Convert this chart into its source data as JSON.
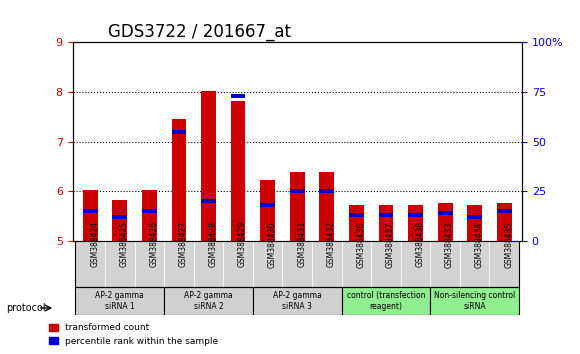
{
  "title": "GDS3722 / 201667_at",
  "samples": [
    "GSM388424",
    "GSM388425",
    "GSM388426",
    "GSM388427",
    "GSM388428",
    "GSM388429",
    "GSM388430",
    "GSM388431",
    "GSM388432",
    "GSM388436",
    "GSM388437",
    "GSM388438",
    "GSM388433",
    "GSM388434",
    "GSM388435"
  ],
  "transformed_count": [
    6.02,
    5.82,
    6.02,
    7.45,
    8.02,
    7.82,
    6.22,
    6.38,
    6.38,
    5.72,
    5.72,
    5.72,
    5.77,
    5.72,
    5.77
  ],
  "percentile_rank": [
    15,
    12,
    15,
    55,
    20,
    73,
    18,
    25,
    25,
    13,
    13,
    13,
    14,
    12,
    15
  ],
  "bar_bottom": 5.0,
  "ylim_left": [
    5,
    9
  ],
  "ylim_right": [
    0,
    100
  ],
  "yticks_left": [
    5,
    6,
    7,
    8,
    9
  ],
  "yticks_right": [
    0,
    25,
    50,
    75,
    100
  ],
  "yticklabels_right": [
    "0",
    "25",
    "50",
    "75",
    "100%"
  ],
  "color_red": "#cc0000",
  "color_blue": "#0000cc",
  "bar_width": 0.5,
  "groups": [
    {
      "label": "AP-2 gamma\nsiRNA 1",
      "start": 0,
      "end": 3,
      "color": "#d0d0d0"
    },
    {
      "label": "AP-2 gamma\nsiRNA 2",
      "start": 3,
      "end": 6,
      "color": "#d0d0d0"
    },
    {
      "label": "AP-2 gamma\nsiRNA 3",
      "start": 6,
      "end": 9,
      "color": "#d0d0d0"
    },
    {
      "label": "control (transfection\nreagent)",
      "start": 9,
      "end": 12,
      "color": "#90ee90"
    },
    {
      "label": "Non-silencing control\nsiRNA",
      "start": 12,
      "end": 15,
      "color": "#90ee90"
    }
  ],
  "protocol_label": "protocol",
  "legend_red": "transformed count",
  "legend_blue": "percentile rank within the sample",
  "plot_bg": "#ffffff",
  "tick_area_bg": "#d3d3d3",
  "grid_color": "#000000",
  "title_fontsize": 12,
  "axis_fontsize": 8,
  "label_fontsize": 7.5
}
